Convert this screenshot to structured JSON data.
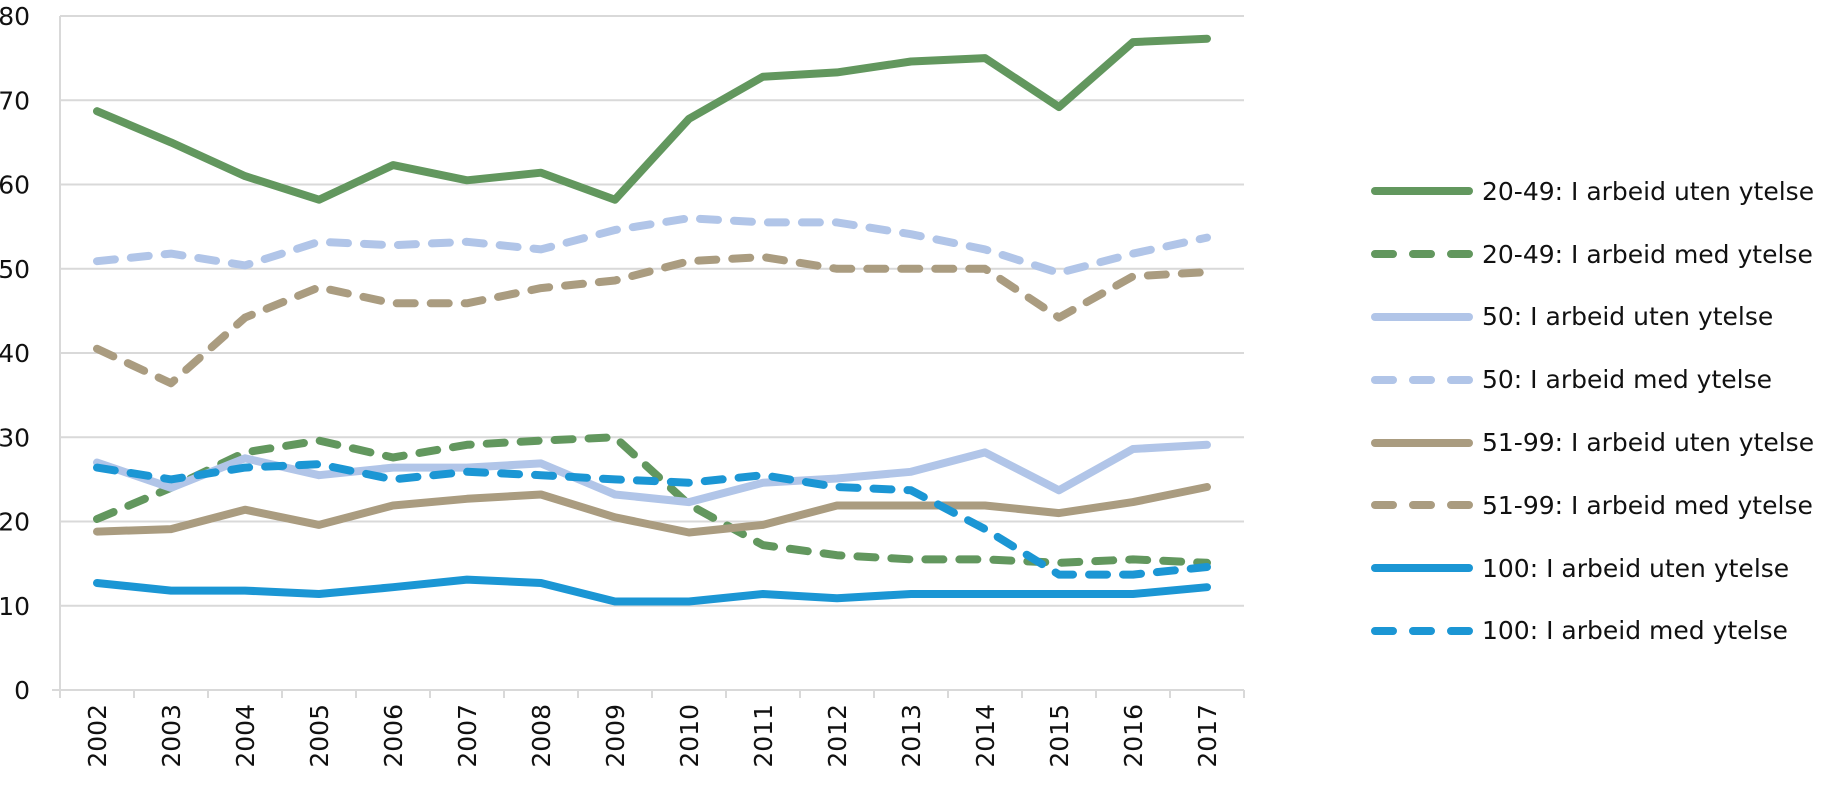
{
  "chart_data": {
    "type": "line",
    "title": "",
    "xlabel": "",
    "ylabel": "",
    "ylim": [
      0,
      80
    ],
    "yticks": [
      0,
      10,
      20,
      30,
      40,
      50,
      60,
      70,
      80
    ],
    "grid": true,
    "legend_position": "right",
    "categories": [
      "2002",
      "2003",
      "2004",
      "2005",
      "2006",
      "2007",
      "2008",
      "2009",
      "2010",
      "2011",
      "2012",
      "2013",
      "2014",
      "2015",
      "2016",
      "2017"
    ],
    "series": [
      {
        "name": "20-49: I arbeid uten ytelse",
        "color": "#62975E",
        "dash": false,
        "values": [
          68.7,
          65.0,
          61.0,
          58.2,
          62.3,
          60.5,
          61.4,
          58.2,
          67.8,
          72.8,
          73.3,
          74.6,
          75.0,
          69.2,
          76.9,
          77.3
        ]
      },
      {
        "name": "20-49: I arbeid med ytelse",
        "color": "#62975E",
        "dash": true,
        "values": [
          20.3,
          24.0,
          28.2,
          29.6,
          27.6,
          29.1,
          29.6,
          30.0,
          22.0,
          17.2,
          16.0,
          15.5,
          15.5,
          15.1,
          15.5,
          15.1
        ]
      },
      {
        "name": "50: I arbeid uten ytelse",
        "color": "#B1C5E8",
        "dash": false,
        "values": [
          27.0,
          24.0,
          27.5,
          25.5,
          26.4,
          26.4,
          26.9,
          23.2,
          22.3,
          24.6,
          25.1,
          25.9,
          28.2,
          23.7,
          28.6,
          29.1
        ]
      },
      {
        "name": "50: I arbeid med ytelse",
        "color": "#B1C5E8",
        "dash": true,
        "values": [
          50.9,
          51.8,
          50.4,
          53.2,
          52.8,
          53.2,
          52.3,
          54.6,
          56.0,
          55.5,
          55.5,
          54.1,
          52.3,
          49.5,
          51.8,
          53.7
        ]
      },
      {
        "name": "51-99: I arbeid uten ytelse",
        "color": "#AA9C80",
        "dash": false,
        "values": [
          18.8,
          19.1,
          21.4,
          19.6,
          21.9,
          22.7,
          23.2,
          20.5,
          18.7,
          19.6,
          21.9,
          21.9,
          21.9,
          21.0,
          22.3,
          24.1
        ]
      },
      {
        "name": "51-99: I arbeid med ytelse",
        "color": "#AA9C80",
        "dash": true,
        "values": [
          40.5,
          36.4,
          44.2,
          47.8,
          45.9,
          45.9,
          47.7,
          48.6,
          50.9,
          51.4,
          50.0,
          50.0,
          50.0,
          44.2,
          49.1,
          49.6
        ]
      },
      {
        "name": "100: I arbeid uten ytelse",
        "color": "#1B96D4",
        "dash": false,
        "values": [
          12.7,
          11.8,
          11.8,
          11.4,
          12.2,
          13.1,
          12.7,
          10.5,
          10.5,
          11.4,
          10.9,
          11.4,
          11.4,
          11.4,
          11.4,
          12.2
        ]
      },
      {
        "name": "100: I arbeid med ytelse",
        "color": "#1B96D4",
        "dash": true,
        "values": [
          26.4,
          25.0,
          26.4,
          26.8,
          25.0,
          25.9,
          25.5,
          25.0,
          24.6,
          25.5,
          24.1,
          23.7,
          19.1,
          13.7,
          13.7,
          14.6
        ]
      }
    ]
  }
}
